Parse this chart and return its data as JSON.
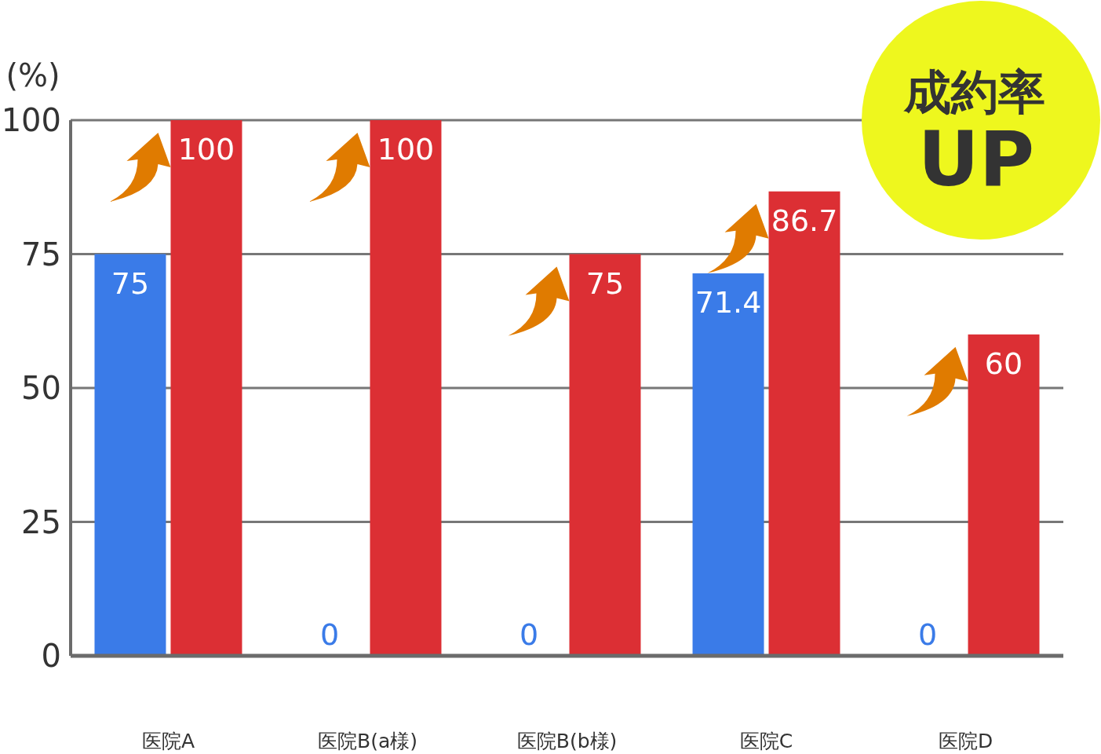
{
  "chart_data": {
    "type": "bar",
    "ylabel": "(%)",
    "categories": [
      "医院A",
      "医院B(a様)",
      "医院B(b様)",
      "医院C",
      "医院D"
    ],
    "series": [
      {
        "color": "#3a7be8",
        "values": [
          75,
          0,
          0,
          71.4,
          0
        ]
      },
      {
        "color": "#dc2f34",
        "values": [
          100,
          100,
          75,
          86.7,
          60
        ]
      }
    ],
    "ylim": [
      0,
      100
    ],
    "yticks": [
      0,
      25,
      50,
      75,
      100
    ],
    "grid": "y",
    "data_labels": true,
    "annotations": [
      "成約率",
      "UP"
    ]
  }
}
